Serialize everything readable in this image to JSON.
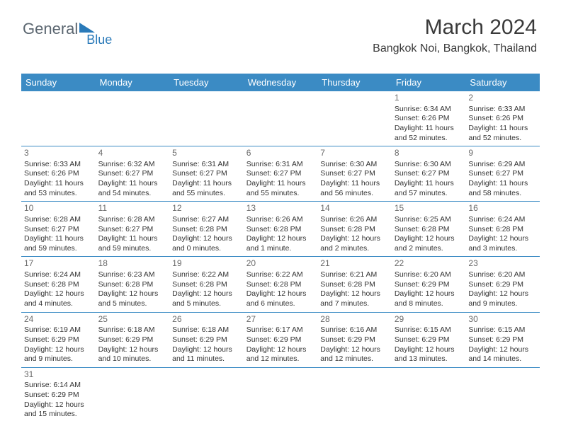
{
  "logo": {
    "text1": "General",
    "text2": "Blue"
  },
  "header": {
    "title": "March 2024",
    "subtitle": "Bangkok Noi, Bangkok, Thailand"
  },
  "style": {
    "header_bg": "#3b8bc4",
    "header_fg": "#ffffff",
    "border_color": "#3b8bc4",
    "text_color": "#333333",
    "daynum_color": "#6a6a6a",
    "title_color": "#3a3a3a",
    "body_font_size": 10.5,
    "header_font_size": 13,
    "title_font_size": 30,
    "subtitle_font_size": 16
  },
  "dayNames": [
    "Sunday",
    "Monday",
    "Tuesday",
    "Wednesday",
    "Thursday",
    "Friday",
    "Saturday"
  ],
  "firstDayOffset": 5,
  "days": [
    {
      "n": 1,
      "sr": "6:34 AM",
      "ss": "6:26 PM",
      "dl": "11 hours and 52 minutes."
    },
    {
      "n": 2,
      "sr": "6:33 AM",
      "ss": "6:26 PM",
      "dl": "11 hours and 52 minutes."
    },
    {
      "n": 3,
      "sr": "6:33 AM",
      "ss": "6:26 PM",
      "dl": "11 hours and 53 minutes."
    },
    {
      "n": 4,
      "sr": "6:32 AM",
      "ss": "6:27 PM",
      "dl": "11 hours and 54 minutes."
    },
    {
      "n": 5,
      "sr": "6:31 AM",
      "ss": "6:27 PM",
      "dl": "11 hours and 55 minutes."
    },
    {
      "n": 6,
      "sr": "6:31 AM",
      "ss": "6:27 PM",
      "dl": "11 hours and 55 minutes."
    },
    {
      "n": 7,
      "sr": "6:30 AM",
      "ss": "6:27 PM",
      "dl": "11 hours and 56 minutes."
    },
    {
      "n": 8,
      "sr": "6:30 AM",
      "ss": "6:27 PM",
      "dl": "11 hours and 57 minutes."
    },
    {
      "n": 9,
      "sr": "6:29 AM",
      "ss": "6:27 PM",
      "dl": "11 hours and 58 minutes."
    },
    {
      "n": 10,
      "sr": "6:28 AM",
      "ss": "6:27 PM",
      "dl": "11 hours and 59 minutes."
    },
    {
      "n": 11,
      "sr": "6:28 AM",
      "ss": "6:27 PM",
      "dl": "11 hours and 59 minutes."
    },
    {
      "n": 12,
      "sr": "6:27 AM",
      "ss": "6:28 PM",
      "dl": "12 hours and 0 minutes."
    },
    {
      "n": 13,
      "sr": "6:26 AM",
      "ss": "6:28 PM",
      "dl": "12 hours and 1 minute."
    },
    {
      "n": 14,
      "sr": "6:26 AM",
      "ss": "6:28 PM",
      "dl": "12 hours and 2 minutes."
    },
    {
      "n": 15,
      "sr": "6:25 AM",
      "ss": "6:28 PM",
      "dl": "12 hours and 2 minutes."
    },
    {
      "n": 16,
      "sr": "6:24 AM",
      "ss": "6:28 PM",
      "dl": "12 hours and 3 minutes."
    },
    {
      "n": 17,
      "sr": "6:24 AM",
      "ss": "6:28 PM",
      "dl": "12 hours and 4 minutes."
    },
    {
      "n": 18,
      "sr": "6:23 AM",
      "ss": "6:28 PM",
      "dl": "12 hours and 5 minutes."
    },
    {
      "n": 19,
      "sr": "6:22 AM",
      "ss": "6:28 PM",
      "dl": "12 hours and 5 minutes."
    },
    {
      "n": 20,
      "sr": "6:22 AM",
      "ss": "6:28 PM",
      "dl": "12 hours and 6 minutes."
    },
    {
      "n": 21,
      "sr": "6:21 AM",
      "ss": "6:28 PM",
      "dl": "12 hours and 7 minutes."
    },
    {
      "n": 22,
      "sr": "6:20 AM",
      "ss": "6:29 PM",
      "dl": "12 hours and 8 minutes."
    },
    {
      "n": 23,
      "sr": "6:20 AM",
      "ss": "6:29 PM",
      "dl": "12 hours and 9 minutes."
    },
    {
      "n": 24,
      "sr": "6:19 AM",
      "ss": "6:29 PM",
      "dl": "12 hours and 9 minutes."
    },
    {
      "n": 25,
      "sr": "6:18 AM",
      "ss": "6:29 PM",
      "dl": "12 hours and 10 minutes."
    },
    {
      "n": 26,
      "sr": "6:18 AM",
      "ss": "6:29 PM",
      "dl": "12 hours and 11 minutes."
    },
    {
      "n": 27,
      "sr": "6:17 AM",
      "ss": "6:29 PM",
      "dl": "12 hours and 12 minutes."
    },
    {
      "n": 28,
      "sr": "6:16 AM",
      "ss": "6:29 PM",
      "dl": "12 hours and 12 minutes."
    },
    {
      "n": 29,
      "sr": "6:15 AM",
      "ss": "6:29 PM",
      "dl": "12 hours and 13 minutes."
    },
    {
      "n": 30,
      "sr": "6:15 AM",
      "ss": "6:29 PM",
      "dl": "12 hours and 14 minutes."
    },
    {
      "n": 31,
      "sr": "6:14 AM",
      "ss": "6:29 PM",
      "dl": "12 hours and 15 minutes."
    }
  ],
  "labels": {
    "sunrise": "Sunrise:",
    "sunset": "Sunset:",
    "daylight": "Daylight:"
  }
}
